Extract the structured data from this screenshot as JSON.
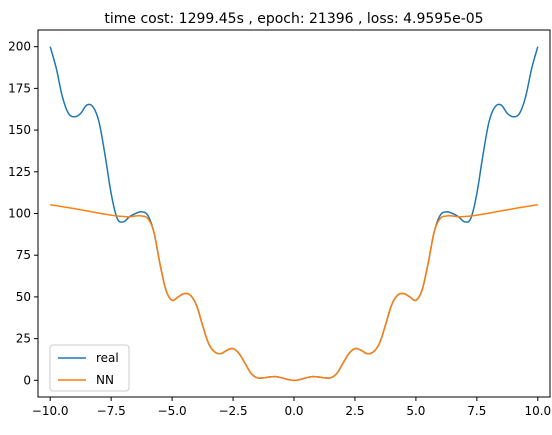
{
  "chart_data": {
    "type": "line",
    "title": "time cost: 1299.45s  ,  epoch: 21396  ,  loss: 4.9595e-05",
    "xlabel": "",
    "ylabel": "",
    "xlim": [
      -10.5,
      10.5
    ],
    "ylim": [
      -10,
      210
    ],
    "xticks": [
      -10.0,
      -7.5,
      -5.0,
      -2.5,
      0.0,
      2.5,
      5.0,
      7.5,
      10.0
    ],
    "xtick_labels": [
      "−10.0",
      "−7.5",
      "−5.0",
      "−2.5",
      "0.0",
      "2.5",
      "5.0",
      "7.5",
      "10.0"
    ],
    "yticks": [
      0,
      25,
      50,
      75,
      100,
      125,
      150,
      175,
      200
    ],
    "ytick_labels": [
      "0",
      "25",
      "50",
      "75",
      "100",
      "125",
      "150",
      "175",
      "200"
    ],
    "grid": false,
    "legend_position": "lower-left",
    "series": [
      {
        "name": "real",
        "color": "#1f77b4",
        "x": [
          0,
          0.25,
          0.5,
          0.75,
          1.0,
          1.25,
          1.5,
          1.75,
          2.0,
          2.25,
          2.5,
          2.75,
          3.0,
          3.25,
          3.5,
          3.75,
          4.0,
          4.25,
          4.5,
          4.75,
          5.0,
          5.25,
          5.5,
          5.75,
          6.0,
          6.25,
          6.5,
          6.75,
          7.0,
          7.25,
          7.5,
          7.75,
          8.0,
          8.25,
          8.5,
          8.75,
          9.0,
          9.25,
          9.5,
          9.75,
          10.0
        ],
        "y": [
          0,
          0.5,
          1.5,
          2.2,
          2.0,
          1.5,
          1.5,
          4,
          10,
          16,
          19,
          18,
          16,
          17,
          22,
          33,
          45,
          51,
          52,
          50,
          48,
          54,
          70,
          89,
          99,
          101,
          100,
          98,
          95,
          97,
          112,
          135,
          155,
          164,
          165,
          160,
          158,
          160,
          170,
          187,
          200
        ]
      },
      {
        "name": "NN",
        "color": "#ff7f0e",
        "x": [
          0,
          0.25,
          0.5,
          0.75,
          1.0,
          1.25,
          1.5,
          1.75,
          2.0,
          2.25,
          2.5,
          2.75,
          3.0,
          3.25,
          3.5,
          3.75,
          4.0,
          4.25,
          4.5,
          4.75,
          5.0,
          5.25,
          5.5,
          5.75,
          6.0,
          6.25,
          6.5,
          6.75,
          7.0,
          7.25,
          7.5,
          7.75,
          8.0,
          8.25,
          8.5,
          8.75,
          9.0,
          9.25,
          9.5,
          9.75,
          10.0
        ],
        "y": [
          0,
          0.5,
          1.5,
          2.2,
          2.0,
          1.5,
          1.5,
          4,
          10,
          16,
          19,
          18,
          16,
          17,
          22,
          33,
          45,
          51,
          52,
          50,
          48,
          54,
          70,
          89,
          97,
          98.5,
          98.5,
          98,
          98.2,
          98.5,
          99,
          99.6,
          100.2,
          100.9,
          101.6,
          102.2,
          102.9,
          103.5,
          104.1,
          104.7,
          105.2
        ]
      }
    ]
  }
}
